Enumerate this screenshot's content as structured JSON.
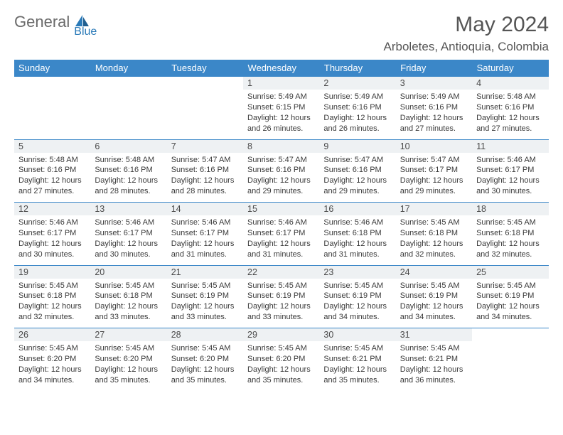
{
  "logo": {
    "text1": "General",
    "text2": "Blue"
  },
  "title": "May 2024",
  "location": "Arboletes, Antioquia, Colombia",
  "colors": {
    "header_bg": "#3b87c8",
    "header_text": "#ffffff",
    "daynum_bg": "#eef1f3",
    "text": "#3a3a3a",
    "title_text": "#555555",
    "logo_gray": "#6a6a6a",
    "logo_blue": "#2a7ab8",
    "border": "#3b87c8"
  },
  "weekdays": [
    "Sunday",
    "Monday",
    "Tuesday",
    "Wednesday",
    "Thursday",
    "Friday",
    "Saturday"
  ],
  "weeks": [
    [
      null,
      null,
      null,
      {
        "n": "1",
        "sr": "5:49 AM",
        "ss": "6:15 PM",
        "dl": "12 hours and 26 minutes."
      },
      {
        "n": "2",
        "sr": "5:49 AM",
        "ss": "6:16 PM",
        "dl": "12 hours and 26 minutes."
      },
      {
        "n": "3",
        "sr": "5:49 AM",
        "ss": "6:16 PM",
        "dl": "12 hours and 27 minutes."
      },
      {
        "n": "4",
        "sr": "5:48 AM",
        "ss": "6:16 PM",
        "dl": "12 hours and 27 minutes."
      }
    ],
    [
      {
        "n": "5",
        "sr": "5:48 AM",
        "ss": "6:16 PM",
        "dl": "12 hours and 27 minutes."
      },
      {
        "n": "6",
        "sr": "5:48 AM",
        "ss": "6:16 PM",
        "dl": "12 hours and 28 minutes."
      },
      {
        "n": "7",
        "sr": "5:47 AM",
        "ss": "6:16 PM",
        "dl": "12 hours and 28 minutes."
      },
      {
        "n": "8",
        "sr": "5:47 AM",
        "ss": "6:16 PM",
        "dl": "12 hours and 29 minutes."
      },
      {
        "n": "9",
        "sr": "5:47 AM",
        "ss": "6:16 PM",
        "dl": "12 hours and 29 minutes."
      },
      {
        "n": "10",
        "sr": "5:47 AM",
        "ss": "6:17 PM",
        "dl": "12 hours and 29 minutes."
      },
      {
        "n": "11",
        "sr": "5:46 AM",
        "ss": "6:17 PM",
        "dl": "12 hours and 30 minutes."
      }
    ],
    [
      {
        "n": "12",
        "sr": "5:46 AM",
        "ss": "6:17 PM",
        "dl": "12 hours and 30 minutes."
      },
      {
        "n": "13",
        "sr": "5:46 AM",
        "ss": "6:17 PM",
        "dl": "12 hours and 30 minutes."
      },
      {
        "n": "14",
        "sr": "5:46 AM",
        "ss": "6:17 PM",
        "dl": "12 hours and 31 minutes."
      },
      {
        "n": "15",
        "sr": "5:46 AM",
        "ss": "6:17 PM",
        "dl": "12 hours and 31 minutes."
      },
      {
        "n": "16",
        "sr": "5:46 AM",
        "ss": "6:18 PM",
        "dl": "12 hours and 31 minutes."
      },
      {
        "n": "17",
        "sr": "5:45 AM",
        "ss": "6:18 PM",
        "dl": "12 hours and 32 minutes."
      },
      {
        "n": "18",
        "sr": "5:45 AM",
        "ss": "6:18 PM",
        "dl": "12 hours and 32 minutes."
      }
    ],
    [
      {
        "n": "19",
        "sr": "5:45 AM",
        "ss": "6:18 PM",
        "dl": "12 hours and 32 minutes."
      },
      {
        "n": "20",
        "sr": "5:45 AM",
        "ss": "6:18 PM",
        "dl": "12 hours and 33 minutes."
      },
      {
        "n": "21",
        "sr": "5:45 AM",
        "ss": "6:19 PM",
        "dl": "12 hours and 33 minutes."
      },
      {
        "n": "22",
        "sr": "5:45 AM",
        "ss": "6:19 PM",
        "dl": "12 hours and 33 minutes."
      },
      {
        "n": "23",
        "sr": "5:45 AM",
        "ss": "6:19 PM",
        "dl": "12 hours and 34 minutes."
      },
      {
        "n": "24",
        "sr": "5:45 AM",
        "ss": "6:19 PM",
        "dl": "12 hours and 34 minutes."
      },
      {
        "n": "25",
        "sr": "5:45 AM",
        "ss": "6:19 PM",
        "dl": "12 hours and 34 minutes."
      }
    ],
    [
      {
        "n": "26",
        "sr": "5:45 AM",
        "ss": "6:20 PM",
        "dl": "12 hours and 34 minutes."
      },
      {
        "n": "27",
        "sr": "5:45 AM",
        "ss": "6:20 PM",
        "dl": "12 hours and 35 minutes."
      },
      {
        "n": "28",
        "sr": "5:45 AM",
        "ss": "6:20 PM",
        "dl": "12 hours and 35 minutes."
      },
      {
        "n": "29",
        "sr": "5:45 AM",
        "ss": "6:20 PM",
        "dl": "12 hours and 35 minutes."
      },
      {
        "n": "30",
        "sr": "5:45 AM",
        "ss": "6:21 PM",
        "dl": "12 hours and 35 minutes."
      },
      {
        "n": "31",
        "sr": "5:45 AM",
        "ss": "6:21 PM",
        "dl": "12 hours and 36 minutes."
      },
      null
    ]
  ],
  "labels": {
    "sunrise": "Sunrise: ",
    "sunset": "Sunset: ",
    "daylight": "Daylight: "
  }
}
